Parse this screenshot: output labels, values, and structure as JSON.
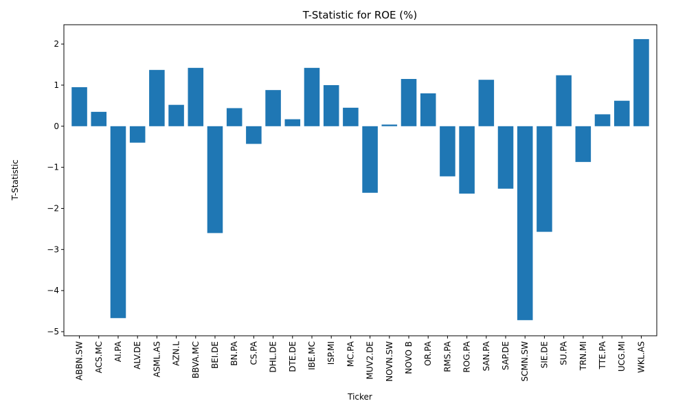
{
  "chart_data": {
    "type": "bar",
    "title": "T-Statistic for ROE (%)",
    "xlabel": "Ticker",
    "ylabel": "T-Statistic",
    "ylim": [
      -5.1,
      2.47
    ],
    "yticks": [
      -5,
      -4,
      -3,
      -2,
      -1,
      0,
      1,
      2
    ],
    "grid": false,
    "bar_color": "#1f77b4",
    "categories": [
      "ABBN.SW",
      "ACS.MC",
      "AI.PA",
      "ALV.DE",
      "ASML.AS",
      "AZN.L",
      "BBVA.MC",
      "BEI.DE",
      "BN.PA",
      "CS.PA",
      "DHL.DE",
      "DTE.DE",
      "IBE.MC",
      "ISP.MI",
      "MC.PA",
      "MUV2.DE",
      "NOVN.SW",
      "NOVO B",
      "OR.PA",
      "RMS.PA",
      "ROG.PA",
      "SAN.PA",
      "SAP.DE",
      "SCMN.SW",
      "SIE.DE",
      "SU.PA",
      "TRN.MI",
      "TTE.PA",
      "UCG.MI",
      "WKL.AS"
    ],
    "values": [
      0.95,
      0.35,
      -4.67,
      -0.4,
      1.37,
      0.52,
      1.42,
      -2.6,
      0.44,
      -0.43,
      0.88,
      0.17,
      1.42,
      1.0,
      0.45,
      -1.62,
      0.04,
      1.15,
      0.8,
      -1.22,
      -1.64,
      1.13,
      -1.52,
      -4.72,
      -2.57,
      1.24,
      -0.87,
      0.29,
      0.62,
      2.12
    ]
  }
}
